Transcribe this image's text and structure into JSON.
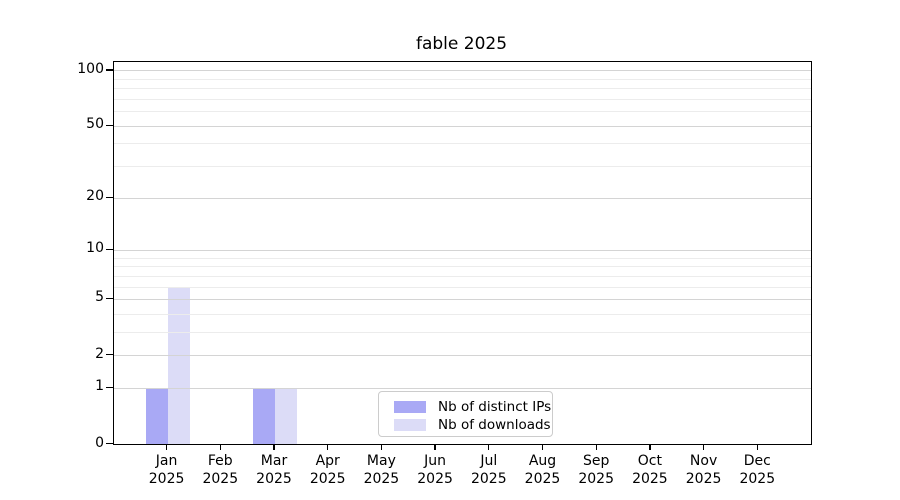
{
  "title": "fable 2025",
  "chart_data": {
    "type": "bar",
    "title": "fable 2025",
    "categories": [
      "Jan 2025",
      "Feb 2025",
      "Mar 2025",
      "Apr 2025",
      "May 2025",
      "Jun 2025",
      "Jul 2025",
      "Aug 2025",
      "Sep 2025",
      "Oct 2025",
      "Nov 2025",
      "Dec 2025"
    ],
    "months": [
      "Jan",
      "Feb",
      "Mar",
      "Apr",
      "May",
      "Jun",
      "Jul",
      "Aug",
      "Sep",
      "Oct",
      "Nov",
      "Dec"
    ],
    "year": "2025",
    "series": [
      {
        "name": "Nb of distinct IPs",
        "color": "#a9a9f5",
        "values": [
          1,
          0,
          1,
          0,
          0,
          0,
          0,
          0,
          0,
          0,
          0,
          0
        ]
      },
      {
        "name": "Nb of downloads",
        "color": "#dcdcf7",
        "values": [
          6,
          0,
          1,
          0,
          0,
          0,
          0,
          0,
          0,
          0,
          0,
          0
        ]
      }
    ],
    "yscale": "log1p",
    "yticks": [
      0,
      1,
      2,
      5,
      10,
      20,
      50,
      100
    ],
    "minor_gridlines": [
      3,
      4,
      6,
      7,
      8,
      9,
      30,
      40,
      60,
      70,
      80,
      90
    ],
    "ylim": [
      0,
      111
    ],
    "xlabel": "",
    "ylabel": "",
    "grid": true,
    "legend_position": "bottom-center-inside",
    "colors": {
      "spine": "#000000",
      "major_grid": "#d4d4d4",
      "minor_grid": "#ececec",
      "background": "#ffffff"
    }
  }
}
